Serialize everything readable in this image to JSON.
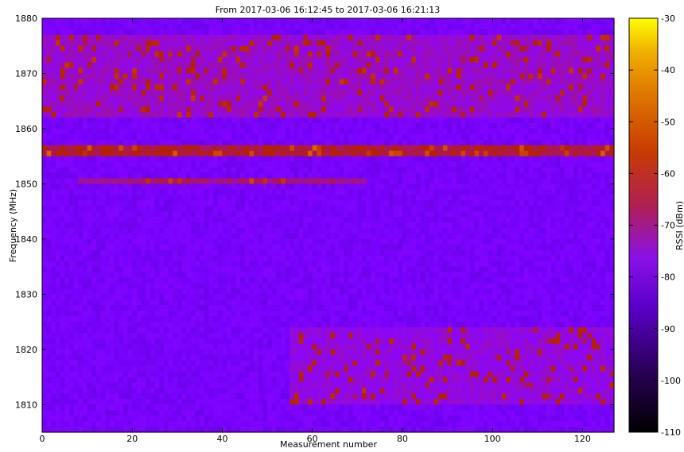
{
  "chart_data": {
    "type": "heatmap",
    "title": "From 2017-03-06 16:12:45 to 2017-03-06 16:21:13",
    "xlabel": "Measurement number",
    "ylabel": "Frequency (MHz)",
    "xlim": [
      0,
      127
    ],
    "ylim": [
      1805,
      1880
    ],
    "x_ticks": [
      0,
      20,
      40,
      60,
      80,
      100,
      120
    ],
    "y_ticks": [
      1810,
      1820,
      1830,
      1840,
      1850,
      1860,
      1870,
      1880
    ],
    "colorbar": {
      "label": "RSSI (dBm)",
      "range": [
        -110,
        -30
      ],
      "ticks": [
        -110,
        -100,
        -90,
        -80,
        -70,
        -60,
        -50,
        -40,
        -30
      ],
      "colormap": "gnuplot"
    },
    "features": [
      {
        "freq_mhz": [
          1855,
          1856.5
        ],
        "rssi_dbm": -72,
        "extent_x": [
          0,
          127
        ],
        "description": "strong continuous band"
      },
      {
        "freq_mhz": [
          1850,
          1851
        ],
        "rssi_dbm": -76,
        "extent_x": [
          8,
          72
        ],
        "description": "intermittent band"
      },
      {
        "freq_mhz": [
          1862,
          1877
        ],
        "rssi_dbm": -82,
        "extent_x": [
          0,
          127
        ],
        "description": "elevated noise with red hotspots"
      },
      {
        "freq_mhz": [
          1810,
          1824
        ],
        "rssi_dbm": -84,
        "extent_x": [
          55,
          127
        ],
        "description": "elevated noise with red hotspots"
      },
      {
        "freq_mhz": [
          1805,
          1880
        ],
        "rssi_dbm": -92,
        "extent_x": [
          0,
          127
        ],
        "description": "background noise floor"
      }
    ]
  }
}
